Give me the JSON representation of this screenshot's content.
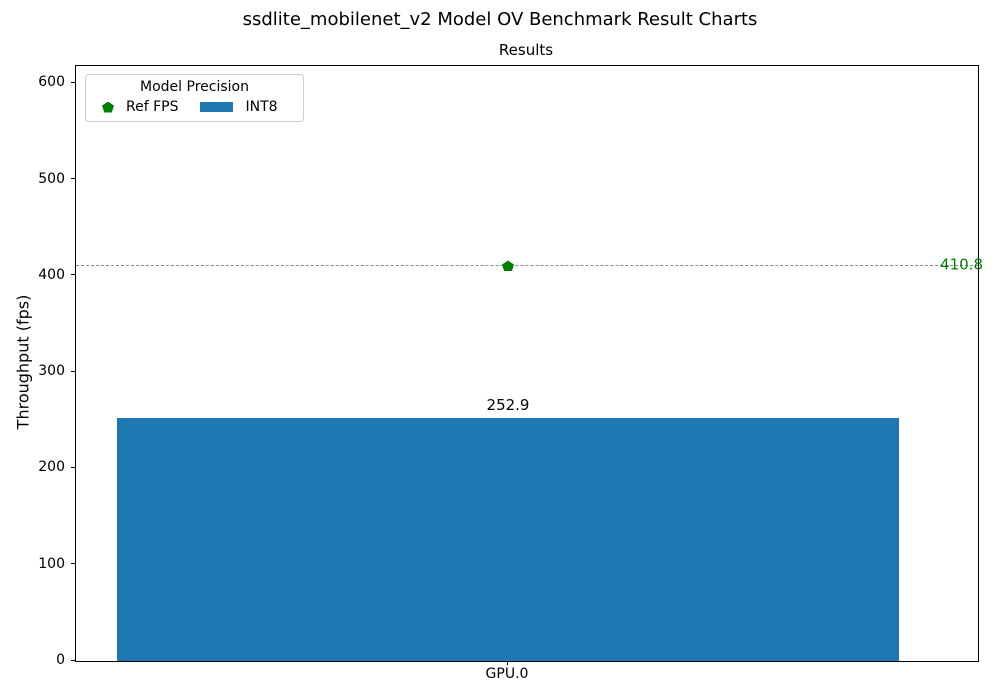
{
  "figure": {
    "title": "ssdlite_mobilenet_v2 Model OV Benchmark Result Charts"
  },
  "chart_data": {
    "type": "bar",
    "title": "Results",
    "xlabel": "",
    "ylabel": "Throughput (fps)",
    "categories": [
      "GPU.0"
    ],
    "series": [
      {
        "name": "INT8",
        "type": "bar",
        "values": [
          252.9
        ],
        "color": "#1f77b4"
      },
      {
        "name": "Ref FPS",
        "type": "reference-line",
        "values": [
          410.8
        ],
        "color": "#008000",
        "marker": "pentagon",
        "line_style": "dashed",
        "line_color": "#8c8c8c"
      }
    ],
    "ylim": [
      0,
      618
    ],
    "yticks": [
      0,
      100,
      200,
      300,
      400,
      500,
      600
    ],
    "grid": false,
    "legend": {
      "title": "Model Precision",
      "position": "upper-left",
      "entries": [
        {
          "label": "Ref FPS",
          "marker": "pentagon",
          "color": "#008000"
        },
        {
          "label": "INT8",
          "marker": "rect",
          "color": "#1f77b4"
        }
      ]
    }
  }
}
